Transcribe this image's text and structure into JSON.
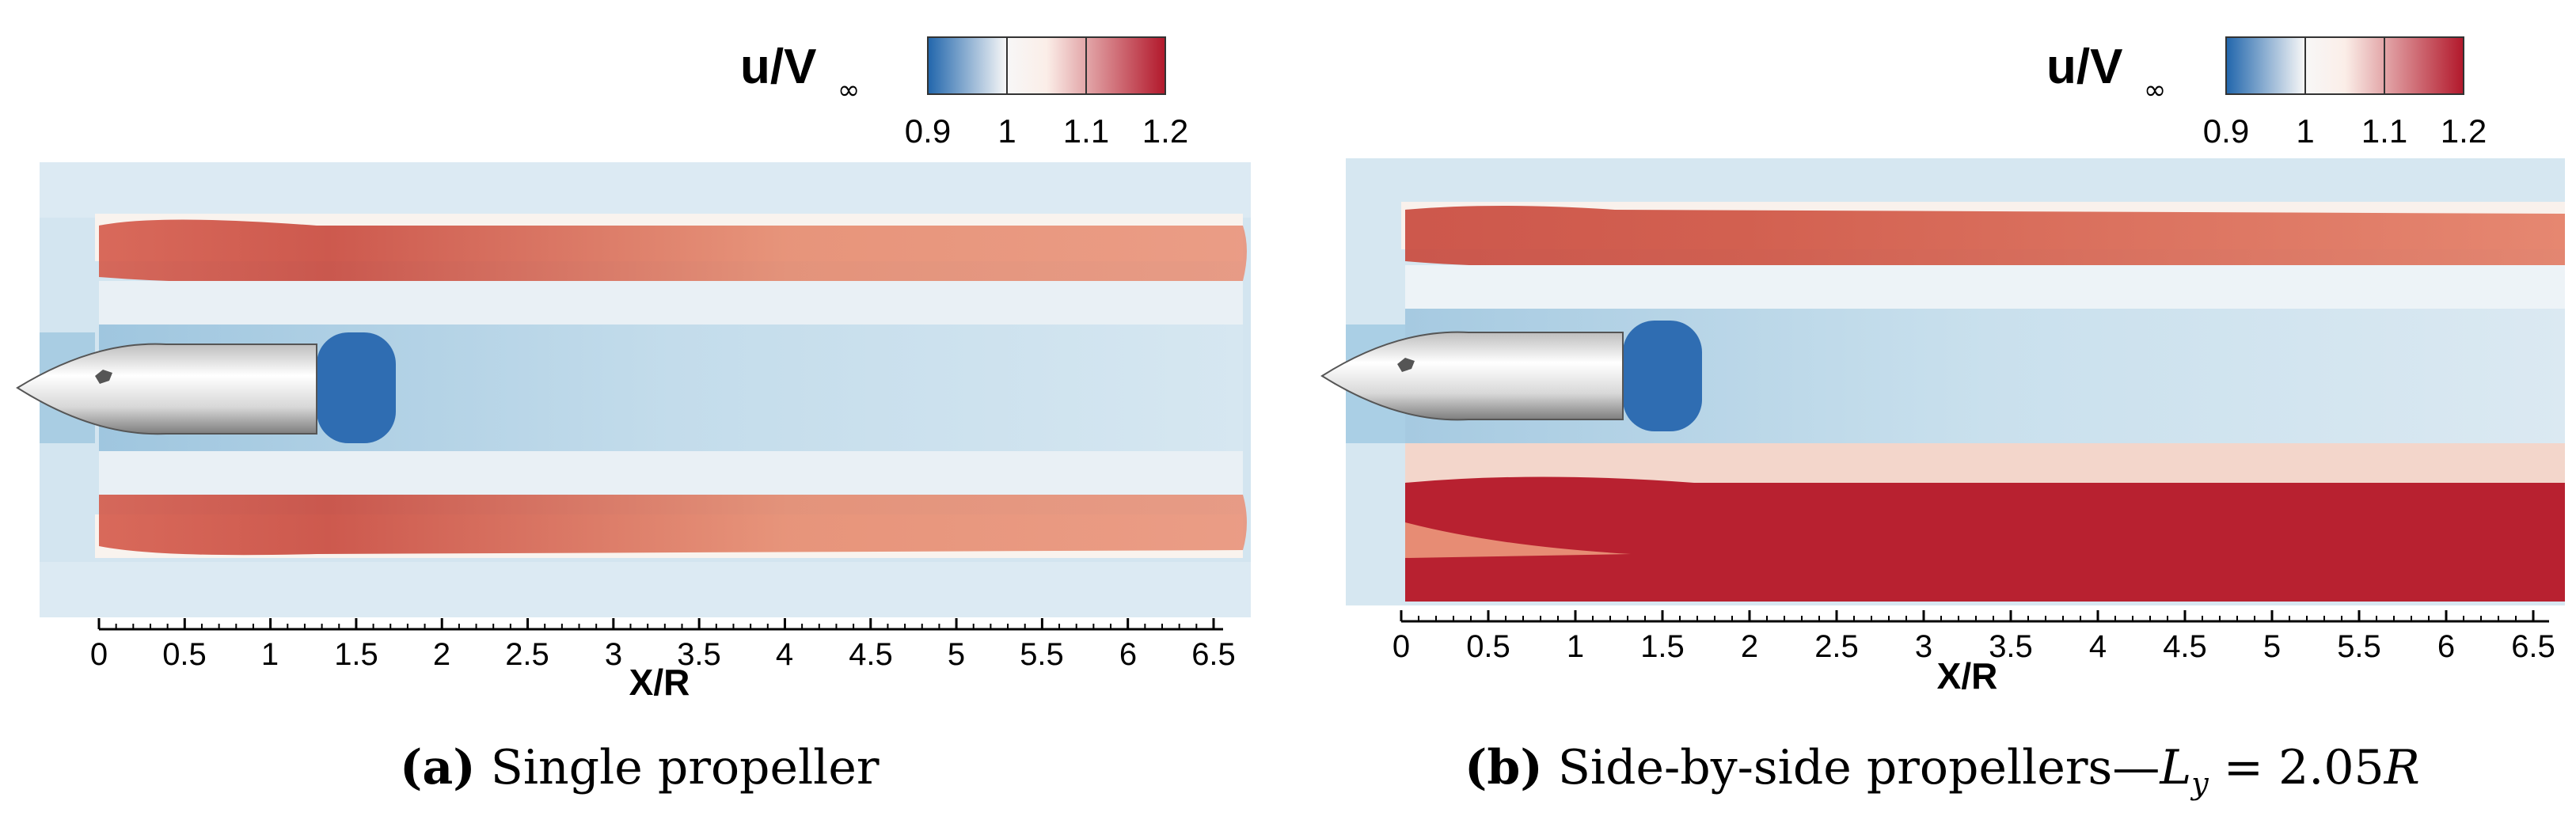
{
  "panels": [
    {
      "legend": {
        "title_main": "u/V",
        "title_sub": "∞",
        "ticks": [
          "0.9",
          "1",
          "1.1",
          "1.2"
        ]
      },
      "axis": {
        "ticks": [
          "0",
          "0.5",
          "1",
          "1.5",
          "2",
          "2.5",
          "3",
          "3.5",
          "4",
          "4.5",
          "5",
          "5.5",
          "6",
          "6.5"
        ],
        "label": "X/R"
      },
      "caption": {
        "tag": "(a)",
        "text": "Single propeller"
      }
    },
    {
      "legend": {
        "title_main": "u/V",
        "title_sub": "∞",
        "ticks": [
          "0.9",
          "1",
          "1.1",
          "1.2"
        ]
      },
      "axis": {
        "ticks": [
          "0",
          "0.5",
          "1",
          "1.5",
          "2",
          "2.5",
          "3",
          "3.5",
          "4",
          "4.5",
          "5",
          "5.5",
          "6",
          "6.5"
        ],
        "label": "X/R"
      },
      "caption": {
        "tag": "(b)",
        "text": "Side-by-side propellers—",
        "math_var": "L",
        "math_sub": "y",
        "math_rest": " = 2.05",
        "math_var2": "R"
      }
    }
  ],
  "colorscale": {
    "low": "#2166ac",
    "mid": "#f7f7f7",
    "high": "#b2182b"
  }
}
